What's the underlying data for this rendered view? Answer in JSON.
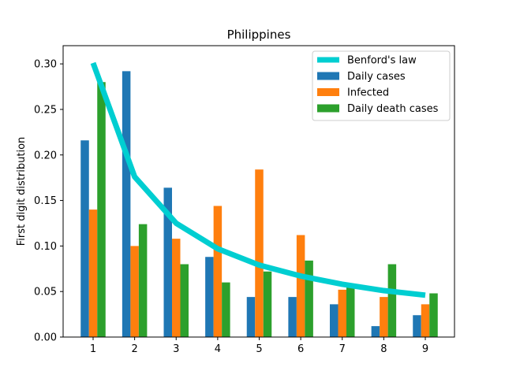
{
  "chart_data": {
    "type": "bar",
    "title": "Philippines",
    "xlabel": "",
    "ylabel": "First digit distribution",
    "categories": [
      "1",
      "2",
      "3",
      "4",
      "5",
      "6",
      "7",
      "8",
      "9"
    ],
    "ylim": [
      0,
      0.32
    ],
    "yticks": [
      "0.00",
      "0.05",
      "0.10",
      "0.15",
      "0.20",
      "0.25",
      "0.30"
    ],
    "grid": false,
    "legend_position": "top-right",
    "series": [
      {
        "name": "Daily cases",
        "kind": "bar",
        "color": "#1f77b4",
        "values": [
          0.216,
          0.292,
          0.164,
          0.088,
          0.044,
          0.044,
          0.036,
          0.012,
          0.024
        ]
      },
      {
        "name": "Infected",
        "kind": "bar",
        "color": "#ff7f0e",
        "values": [
          0.14,
          0.1,
          0.108,
          0.144,
          0.184,
          0.112,
          0.052,
          0.044,
          0.036
        ]
      },
      {
        "name": "Daily death cases",
        "kind": "bar",
        "color": "#2ca02c",
        "values": [
          0.28,
          0.124,
          0.08,
          0.06,
          0.072,
          0.084,
          0.056,
          0.08,
          0.048
        ]
      }
    ],
    "line": {
      "name": "Benford's law",
      "color": "#00ced1",
      "values": [
        0.301,
        0.176,
        0.125,
        0.097,
        0.079,
        0.067,
        0.058,
        0.051,
        0.046
      ]
    }
  }
}
